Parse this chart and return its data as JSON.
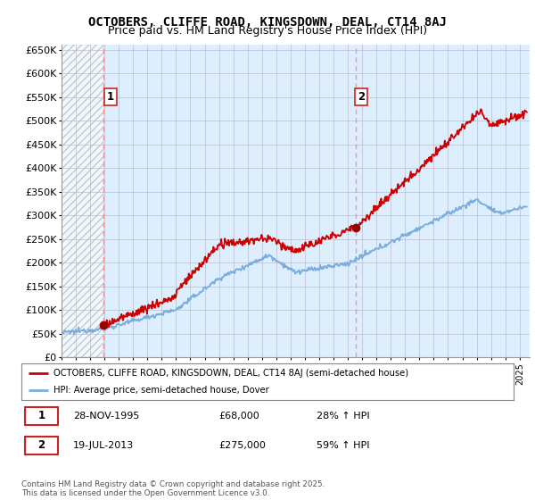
{
  "title": "OCTOBERS, CLIFFE ROAD, KINGSDOWN, DEAL, CT14 8AJ",
  "subtitle": "Price paid vs. HM Land Registry's House Price Index (HPI)",
  "ylim": [
    0,
    660000
  ],
  "yticks": [
    0,
    50000,
    100000,
    150000,
    200000,
    250000,
    300000,
    350000,
    400000,
    450000,
    500000,
    550000,
    600000,
    650000
  ],
  "ytick_labels": [
    "£0",
    "£50K",
    "£100K",
    "£150K",
    "£200K",
    "£250K",
    "£300K",
    "£350K",
    "£400K",
    "£450K",
    "£500K",
    "£550K",
    "£600K",
    "£650K"
  ],
  "xlim_start": 1993.0,
  "xlim_end": 2025.7,
  "xticks": [
    1993,
    1994,
    1995,
    1996,
    1997,
    1998,
    1999,
    2000,
    2001,
    2002,
    2003,
    2004,
    2005,
    2006,
    2007,
    2008,
    2009,
    2010,
    2011,
    2012,
    2013,
    2014,
    2015,
    2016,
    2017,
    2018,
    2019,
    2020,
    2021,
    2022,
    2023,
    2024,
    2025
  ],
  "sale1_x": 1995.91,
  "sale1_y": 68000,
  "sale1_label": "1",
  "sale1_date": "28-NOV-1995",
  "sale1_price": "£68,000",
  "sale1_hpi": "28% ↑ HPI",
  "sale2_x": 2013.54,
  "sale2_y": 275000,
  "sale2_label": "2",
  "sale2_date": "19-JUL-2013",
  "sale2_price": "£275,000",
  "sale2_hpi": "59% ↑ HPI",
  "legend_property": "OCTOBERS, CLIFFE ROAD, KINGSDOWN, DEAL, CT14 8AJ (semi-detached house)",
  "legend_hpi": "HPI: Average price, semi-detached house, Dover",
  "footer": "Contains HM Land Registry data © Crown copyright and database right 2025.\nThis data is licensed under the Open Government Licence v3.0.",
  "property_color": "#cc0000",
  "hpi_color": "#7aaddc",
  "sale_marker_color": "#990000",
  "vline_color": "#ff8888",
  "chart_bg": "#ddeeff",
  "hatch_color": "#bbbbcc",
  "title_fontsize": 10,
  "subtitle_fontsize": 9,
  "tick_fontsize": 8
}
